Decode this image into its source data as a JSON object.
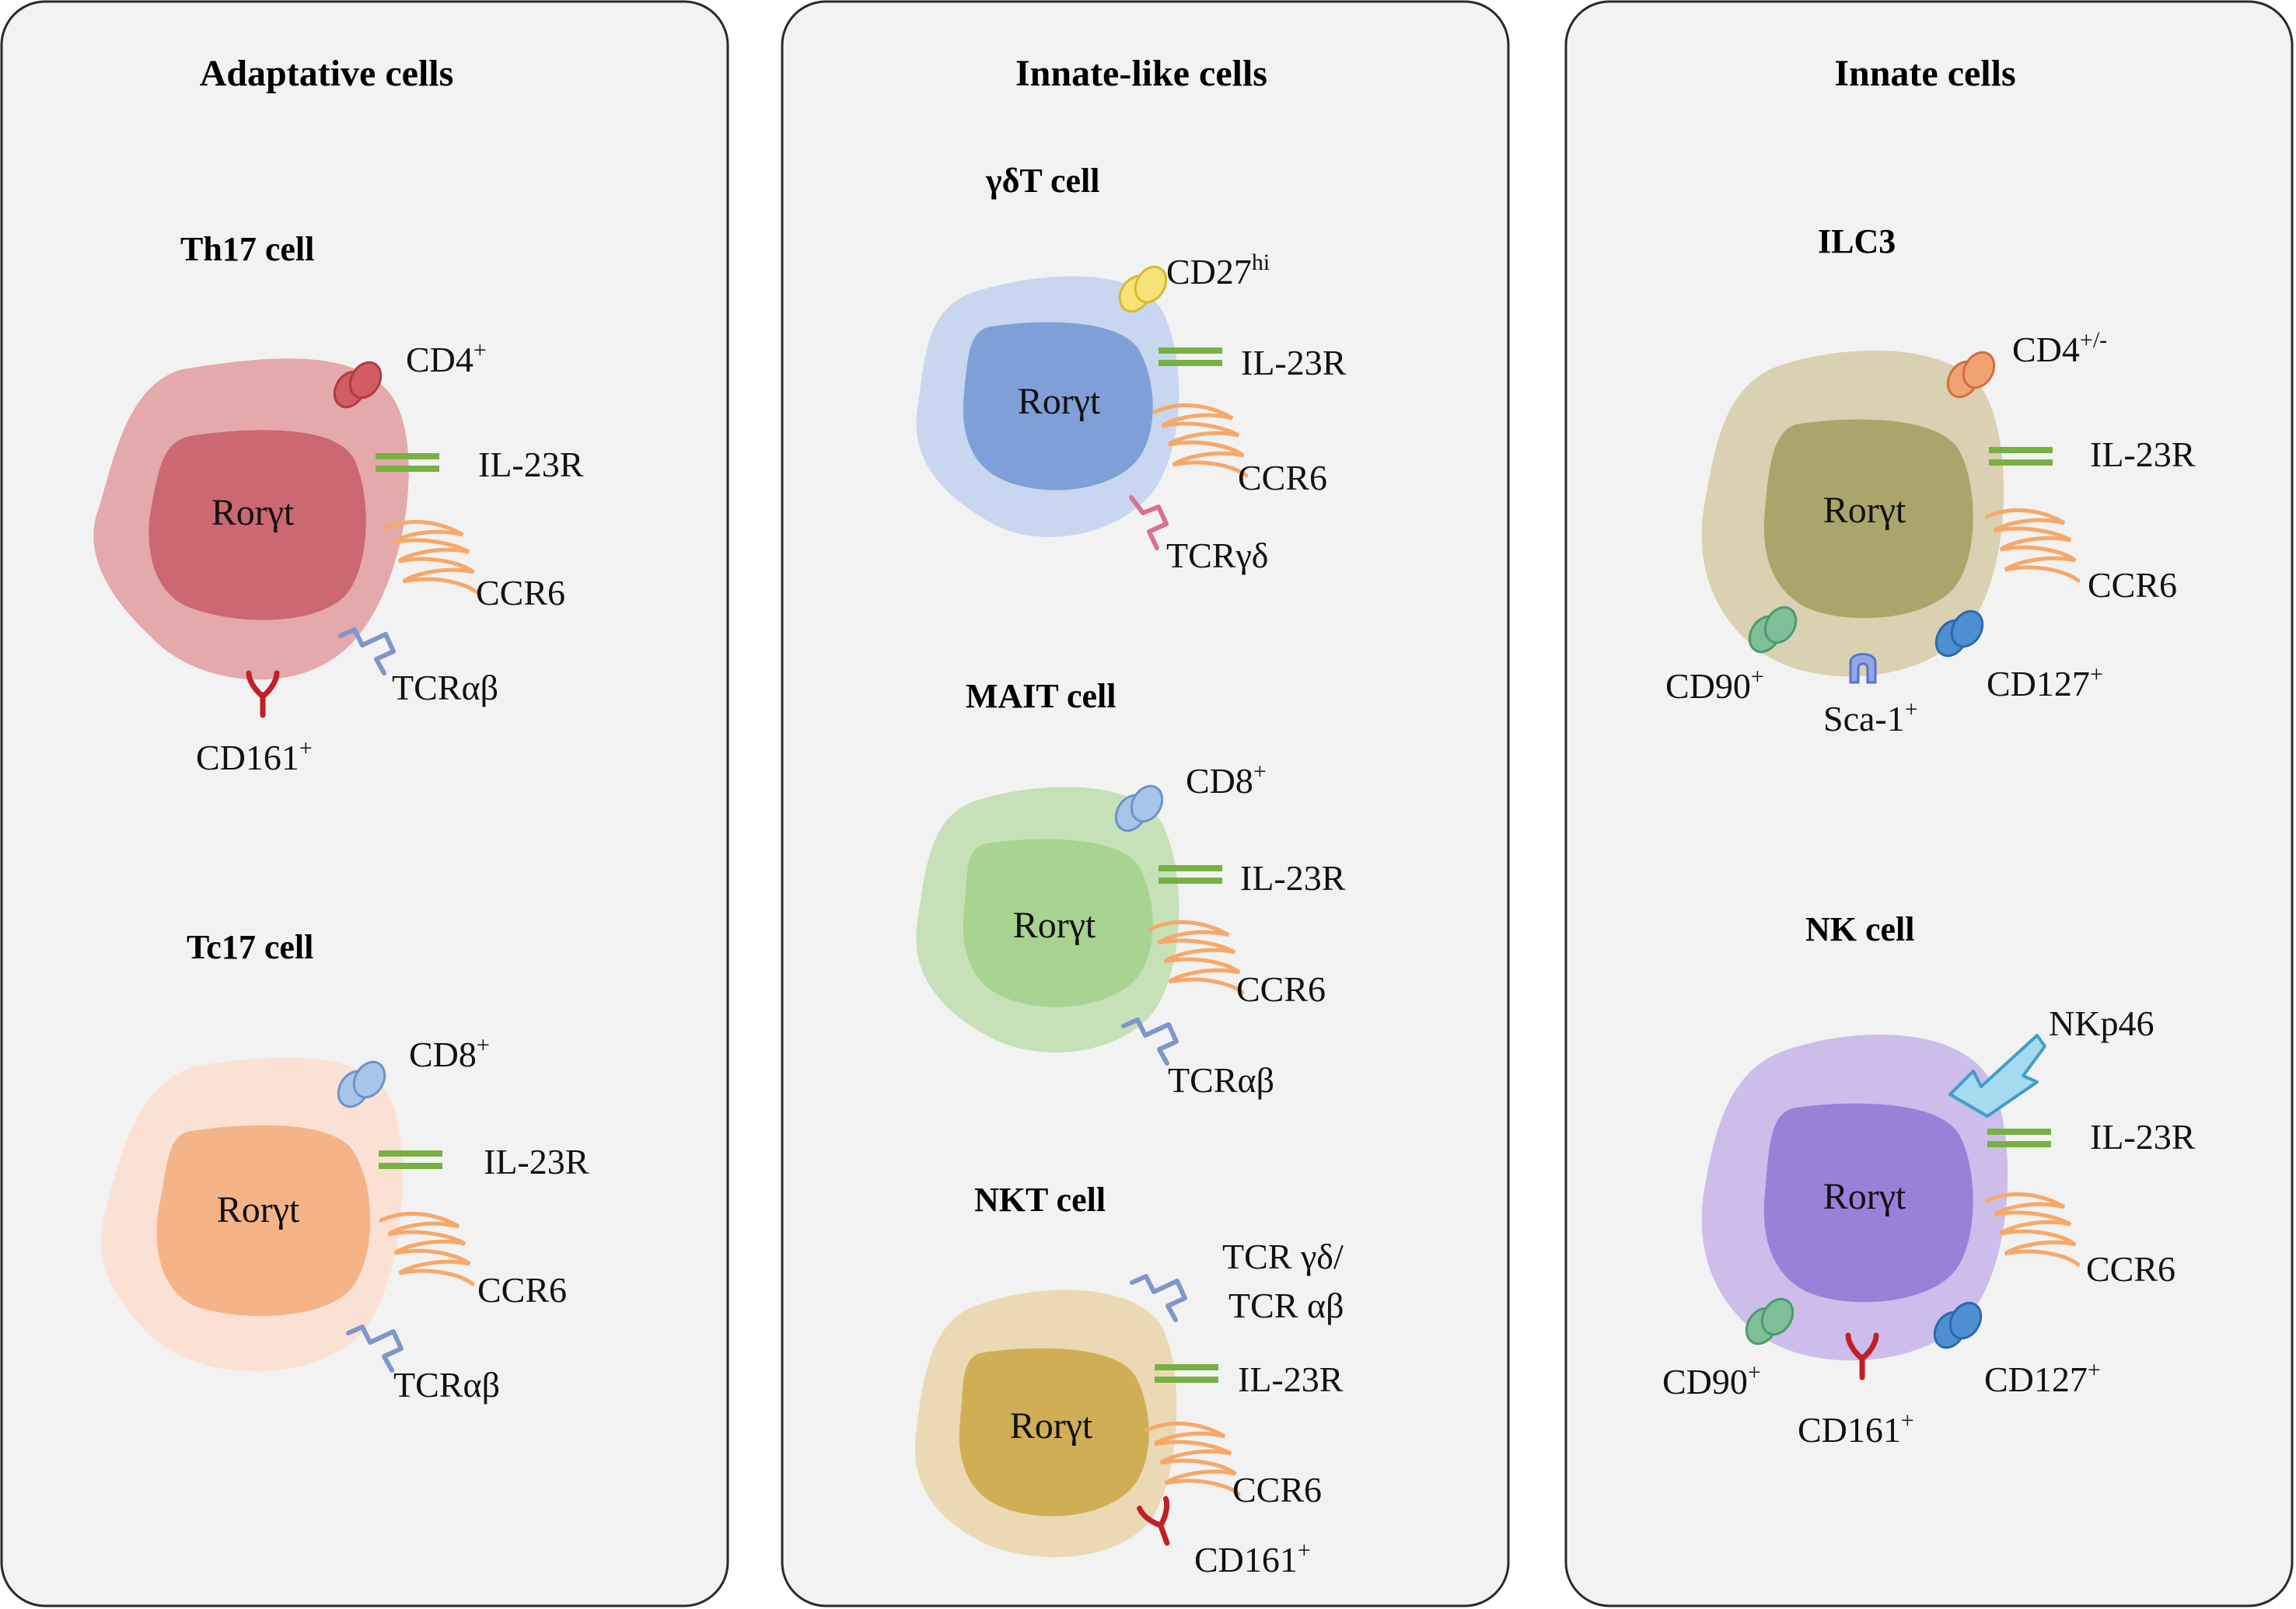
{
  "panels": [
    {
      "title": "Adaptative cells",
      "cells": [
        {
          "name": "Th17 cell",
          "nucleus": "Rorγt",
          "markers": [
            "CD4",
            "IL-23R",
            "CCR6",
            "TCRαβ",
            "CD161"
          ],
          "superscripts": [
            "+",
            "+"
          ]
        },
        {
          "name": "Tc17 cell",
          "nucleus": "Rorγt",
          "markers": [
            "CD8",
            "IL-23R",
            "CCR6",
            "TCRαβ"
          ],
          "superscripts": [
            "+"
          ]
        }
      ]
    },
    {
      "title": "Innate-like  cells",
      "cells": [
        {
          "name": "γδT cell",
          "nucleus": "Rorγt",
          "markers": [
            "CD27",
            "IL-23R",
            "CCR6",
            "TCRγδ"
          ],
          "superscripts": [
            "hi"
          ]
        },
        {
          "name": "MAIT cell",
          "nucleus": "Rorγt",
          "markers": [
            "CD8",
            "IL-23R",
            "CCR6",
            "TCRαβ"
          ],
          "superscripts": [
            "+"
          ]
        },
        {
          "name": "NKT cell",
          "nucleus": "Rorγt",
          "markers": [
            "TCR γδ/",
            "TCR αβ",
            "IL-23R",
            "CCR6",
            "CD161"
          ],
          "superscripts": [
            "+"
          ]
        }
      ]
    },
    {
      "title": "Innate  cells",
      "cells": [
        {
          "name": "ILC3",
          "nucleus": "Rorγt",
          "markers": [
            "CD4",
            "IL-23R",
            "CCR6",
            "CD90",
            "Sca-1",
            "CD127"
          ],
          "superscripts": [
            "+/-",
            "+",
            "+",
            "+"
          ]
        },
        {
          "name": "NK cell",
          "nucleus": "Rorγt",
          "markers": [
            "NKp46",
            "IL-23R",
            "CCR6",
            "CD90",
            "CD161",
            "CD127"
          ],
          "superscripts": [
            "+",
            "+",
            "+"
          ]
        }
      ]
    }
  ],
  "colors": {
    "th17_outer": "#e4a9ab",
    "th17_inner": "#cb6872",
    "tc17_outer": "#fbe1d3",
    "tc17_inner": "#f5b488",
    "gdt_outer": "#c8d6ef",
    "gdt_inner": "#7f9fd8",
    "mait_outer": "#c6e1b7",
    "mait_inner": "#a8d390",
    "nkt_outer": "#ead9b4",
    "nkt_inner": "#d0ae55",
    "ilc3_outer": "#d9d1b2",
    "ilc3_inner": "#aca56b",
    "nk_outer": "#cdbdea",
    "nk_inner": "#9a80d9",
    "il23r": "#77b142",
    "ccr6": "#f7a869",
    "tcr": "#7f96cb",
    "cd161": "#c21f26",
    "cd4_red": "#d25c61",
    "cd_blue": "#a6c5e8",
    "cd27": "#f7e277",
    "tcrgd": "#d9728e",
    "cd4_orange": "#f1a274",
    "cd90": "#7fbf98",
    "cd127": "#4d8fd2",
    "sca1": "#90a8e8",
    "nkp46": "#a6daef"
  },
  "icons": [
    "receptor-icon",
    "membrane-protein-icon",
    "y-receptor-icon",
    "arrow-receptor-icon"
  ]
}
